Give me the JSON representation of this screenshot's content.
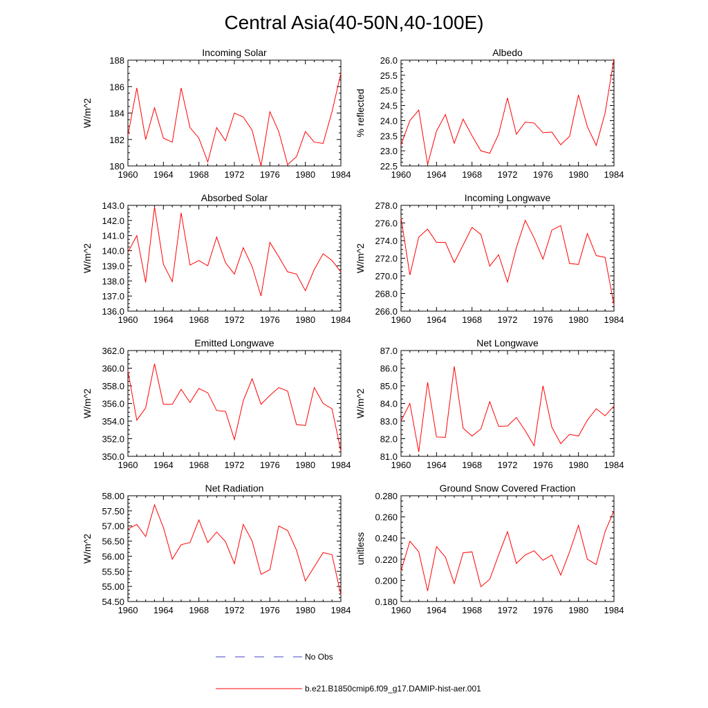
{
  "title": "Central Asia(40-50N,40-100E)",
  "x_ticks": [
    "1960",
    "1964",
    "1968",
    "1972",
    "1976",
    "1980",
    "1984"
  ],
  "colors": {
    "model": "#ff0000",
    "obs": "#4040c0",
    "axis": "#000000"
  },
  "legend": {
    "obs_label": "No Obs",
    "model_label": "b.e21.B1850cmip6.f09_g17.DAMIP-hist-aer.001"
  },
  "chart_data": [
    {
      "type": "line",
      "title": "Incoming Solar",
      "ylabel": "W/m^2",
      "xlim": [
        1960,
        1984
      ],
      "ylim": [
        180,
        188
      ],
      "y_ticks": [
        "180",
        "182",
        "184",
        "186",
        "188"
      ],
      "x": [
        1960,
        1961,
        1962,
        1963,
        1964,
        1965,
        1966,
        1967,
        1968,
        1969,
        1970,
        1971,
        1972,
        1973,
        1974,
        1975,
        1976,
        1977,
        1978,
        1979,
        1980,
        1981,
        1982,
        1983,
        1984
      ],
      "series": [
        {
          "values": [
            182.3,
            185.9,
            182.0,
            184.4,
            182.1,
            181.8,
            185.9,
            182.9,
            182.1,
            180.3,
            182.9,
            181.9,
            184.0,
            183.7,
            182.7,
            180.0,
            184.1,
            182.6,
            180.1,
            180.7,
            182.6,
            181.8,
            181.7,
            184.1,
            187.0
          ]
        }
      ]
    },
    {
      "type": "line",
      "title": "Albedo",
      "ylabel": "% reflected",
      "xlim": [
        1960,
        1984
      ],
      "ylim": [
        22.5,
        26.0
      ],
      "y_ticks": [
        "22.5",
        "23.0",
        "23.5",
        "24.0",
        "24.5",
        "25.0",
        "25.5",
        "26.0"
      ],
      "x": [
        1960,
        1961,
        1962,
        1963,
        1964,
        1965,
        1966,
        1967,
        1968,
        1969,
        1970,
        1971,
        1972,
        1973,
        1974,
        1975,
        1976,
        1977,
        1978,
        1979,
        1980,
        1981,
        1982,
        1983,
        1984
      ],
      "series": [
        {
          "values": [
            23.2,
            24.0,
            24.35,
            22.55,
            23.65,
            24.2,
            23.25,
            24.05,
            23.5,
            23.0,
            22.92,
            23.55,
            24.75,
            23.55,
            23.95,
            23.92,
            23.6,
            23.62,
            23.2,
            23.48,
            24.85,
            23.8,
            23.18,
            24.25,
            26.05
          ]
        }
      ]
    },
    {
      "type": "line",
      "title": "Absorbed Solar",
      "ylabel": "W/m^2",
      "xlim": [
        1960,
        1984
      ],
      "ylim": [
        136.0,
        143.0
      ],
      "y_ticks": [
        "136.0",
        "137.0",
        "138.0",
        "139.0",
        "140.0",
        "141.0",
        "142.0",
        "143.0"
      ],
      "x": [
        1960,
        1961,
        1962,
        1963,
        1964,
        1965,
        1966,
        1967,
        1968,
        1969,
        1970,
        1971,
        1972,
        1973,
        1974,
        1975,
        1976,
        1977,
        1978,
        1979,
        1980,
        1981,
        1982,
        1983,
        1984
      ],
      "series": [
        {
          "values": [
            139.9,
            141.0,
            137.9,
            142.9,
            139.1,
            137.95,
            142.5,
            139.05,
            139.35,
            139.0,
            140.9,
            139.2,
            138.45,
            140.2,
            138.95,
            137.0,
            140.55,
            139.6,
            138.6,
            138.45,
            137.35,
            138.75,
            139.8,
            139.35,
            138.6
          ]
        }
      ]
    },
    {
      "type": "line",
      "title": "Incoming Longwave",
      "ylabel": "W/m^2",
      "xlim": [
        1960,
        1984
      ],
      "ylim": [
        266.0,
        278.0
      ],
      "y_ticks": [
        "266.0",
        "268.0",
        "270.0",
        "272.0",
        "274.0",
        "276.0",
        "278.0"
      ],
      "x": [
        1960,
        1961,
        1962,
        1963,
        1964,
        1965,
        1966,
        1967,
        1968,
        1969,
        1970,
        1971,
        1972,
        1973,
        1974,
        1975,
        1976,
        1977,
        1978,
        1979,
        1980,
        1981,
        1982,
        1983,
        1984
      ],
      "series": [
        {
          "values": [
            276.6,
            270.1,
            274.4,
            275.3,
            273.8,
            273.8,
            271.5,
            273.5,
            275.5,
            274.7,
            271.1,
            272.4,
            269.3,
            273.2,
            276.3,
            274.3,
            271.9,
            275.2,
            275.7,
            271.4,
            271.3,
            274.8,
            272.3,
            272.1,
            266.7
          ]
        }
      ]
    },
    {
      "type": "line",
      "title": "Emitted Longwave",
      "ylabel": "W/m^2",
      "xlim": [
        1960,
        1984
      ],
      "ylim": [
        350.0,
        362.0
      ],
      "y_ticks": [
        "350.0",
        "352.0",
        "354.0",
        "356.0",
        "358.0",
        "360.0",
        "362.0"
      ],
      "x": [
        1960,
        1961,
        1962,
        1963,
        1964,
        1965,
        1966,
        1967,
        1968,
        1969,
        1970,
        1971,
        1972,
        1973,
        1974,
        1975,
        1976,
        1977,
        1978,
        1979,
        1980,
        1981,
        1982,
        1983,
        1984
      ],
      "series": [
        {
          "values": [
            359.7,
            354.1,
            355.5,
            360.5,
            355.9,
            355.9,
            357.6,
            356.1,
            357.7,
            357.2,
            355.2,
            355.1,
            351.9,
            356.3,
            358.8,
            355.9,
            356.9,
            357.8,
            357.4,
            353.6,
            353.5,
            357.8,
            356.0,
            355.4,
            350.6
          ]
        }
      ]
    },
    {
      "type": "line",
      "title": "Net Longwave",
      "ylabel": "W/m^2",
      "xlim": [
        1960,
        1984
      ],
      "ylim": [
        81.0,
        87.0
      ],
      "y_ticks": [
        "81.0",
        "82.0",
        "83.0",
        "84.0",
        "85.0",
        "86.0",
        "87.0"
      ],
      "x": [
        1960,
        1961,
        1962,
        1963,
        1964,
        1965,
        1966,
        1967,
        1968,
        1969,
        1970,
        1971,
        1972,
        1973,
        1974,
        1975,
        1976,
        1977,
        1978,
        1979,
        1980,
        1981,
        1982,
        1983,
        1984
      ],
      "series": [
        {
          "values": [
            83.0,
            84.0,
            81.25,
            85.2,
            82.1,
            82.08,
            86.1,
            82.6,
            82.15,
            82.55,
            84.1,
            82.7,
            82.72,
            83.2,
            82.45,
            81.6,
            85.0,
            82.65,
            81.72,
            82.25,
            82.15,
            83.05,
            83.7,
            83.3,
            83.85
          ]
        }
      ]
    },
    {
      "type": "line",
      "title": "Net Radiation",
      "ylabel": "W/m^2",
      "xlim": [
        1960,
        1984
      ],
      "ylim": [
        54.5,
        58.0
      ],
      "y_ticks": [
        "54.50",
        "55.00",
        "55.50",
        "56.00",
        "56.50",
        "57.00",
        "57.50",
        "58.00"
      ],
      "x": [
        1960,
        1961,
        1962,
        1963,
        1964,
        1965,
        1966,
        1967,
        1968,
        1969,
        1970,
        1971,
        1972,
        1973,
        1974,
        1975,
        1976,
        1977,
        1978,
        1979,
        1980,
        1981,
        1982,
        1983,
        1984
      ],
      "series": [
        {
          "values": [
            56.9,
            57.05,
            56.65,
            57.7,
            56.95,
            55.9,
            56.38,
            56.45,
            57.2,
            56.45,
            56.8,
            56.48,
            55.75,
            57.05,
            56.5,
            55.4,
            55.55,
            57.0,
            56.85,
            56.2,
            55.18,
            55.65,
            56.12,
            56.05,
            54.72
          ]
        }
      ]
    },
    {
      "type": "line",
      "title": "Ground Snow Covered Fraction",
      "ylabel": "unitless",
      "xlim": [
        1960,
        1984
      ],
      "ylim": [
        0.18,
        0.28
      ],
      "y_ticks": [
        "0.180",
        "0.200",
        "0.220",
        "0.240",
        "0.260",
        "0.280"
      ],
      "x": [
        1960,
        1961,
        1962,
        1963,
        1964,
        1965,
        1966,
        1967,
        1968,
        1969,
        1970,
        1971,
        1972,
        1973,
        1974,
        1975,
        1976,
        1977,
        1978,
        1979,
        1980,
        1981,
        1982,
        1983,
        1984
      ],
      "series": [
        {
          "values": [
            0.209,
            0.237,
            0.227,
            0.19,
            0.232,
            0.222,
            0.197,
            0.226,
            0.227,
            0.194,
            0.201,
            0.224,
            0.246,
            0.216,
            0.224,
            0.228,
            0.219,
            0.224,
            0.205,
            0.227,
            0.252,
            0.22,
            0.215,
            0.246,
            0.266
          ]
        }
      ]
    }
  ]
}
